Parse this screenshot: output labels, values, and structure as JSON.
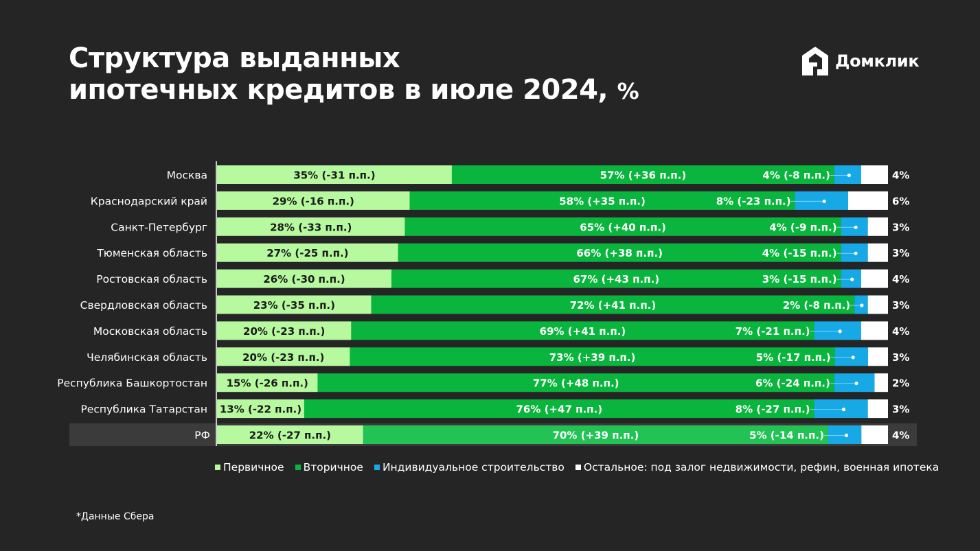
{
  "title": {
    "line1": "Структура выданных",
    "line2": "ипотечных кредитов в июле 2024,",
    "unit": "%"
  },
  "brand": {
    "name": "Домклик",
    "icon": "house-icon"
  },
  "colors": {
    "primary": "#b6f99e",
    "secondary": "#09b53c",
    "secondary_rf": "#22c354",
    "individual": "#16a9e6",
    "other": "#ffffff",
    "background": "#252525",
    "highlight_row": "#3b3b3b"
  },
  "chart_data": {
    "type": "bar",
    "orientation": "horizontal",
    "stacked": true,
    "categories": [
      "Москва",
      "Краснодарский край",
      "Санкт-Петербург",
      "Тюменская область",
      "Ростовская область",
      "Свердловская область",
      "Московская область",
      "Челябинская область",
      "Республика Башкортостан",
      "Республика Татарстан",
      "РФ"
    ],
    "highlighted_category": "РФ",
    "series": [
      {
        "name": "Первичное",
        "values": [
          35,
          29,
          28,
          27,
          26,
          23,
          20,
          20,
          15,
          13,
          22
        ],
        "labels": [
          "35% (-31 п.п.)",
          "29% (-16 п.п.)",
          "28% (-33 п.п.)",
          "27% (-25 п.п.)",
          "26% (-30 п.п.)",
          "23% (-35 п.п.)",
          "20% (-23 п.п.)",
          "20% (-23 п.п.)",
          "15% (-26 п.п.)",
          "13% (-22 п.п.)",
          "22% (-27 п.п.)"
        ]
      },
      {
        "name": "Вторичное",
        "values": [
          57,
          58,
          65,
          66,
          67,
          72,
          69,
          73,
          77,
          76,
          70
        ],
        "labels": [
          "57% (+36 п.п.)",
          "58% (+35 п.п.)",
          "65% (+40 п.п.)",
          "66% (+38 п.п.)",
          "67% (+43 п.п.)",
          "72% (+41 п.п.)",
          "69% (+41 п.п.)",
          "73% (+39 п.п.)",
          "77% (+48 п.п.)",
          "76% (+47 п.п.)",
          "70% (+39 п.п.)"
        ]
      },
      {
        "name": "Индивидуальное строительство",
        "values": [
          4,
          8,
          4,
          4,
          3,
          2,
          7,
          5,
          6,
          8,
          5
        ],
        "labels": [
          "4% (-8 п.п.)",
          "8% (-23 п.п.)",
          "4% (-9 п.п.)",
          "4% (-15 п.п.)",
          "3% (-15 п.п.)",
          "2% (-8 п.п.)",
          "7% (-21 п.п.)",
          "5% (-17 п.п.)",
          "6% (-24 п.п.)",
          "8% (-27 п.п.)",
          "5% (-14 п.п.)"
        ]
      },
      {
        "name": "Остальное: под залог недвижимости, рефин, военная ипотека",
        "values": [
          4,
          6,
          3,
          3,
          4,
          3,
          4,
          3,
          2,
          3,
          4
        ],
        "labels": [
          "4%",
          "6%",
          "3%",
          "3%",
          "4%",
          "3%",
          "4%",
          "3%",
          "2%",
          "3%",
          "4%"
        ]
      }
    ],
    "xlim": [
      0,
      100
    ],
    "legend_position": "bottom"
  },
  "footnote": "*Данные Сбера"
}
